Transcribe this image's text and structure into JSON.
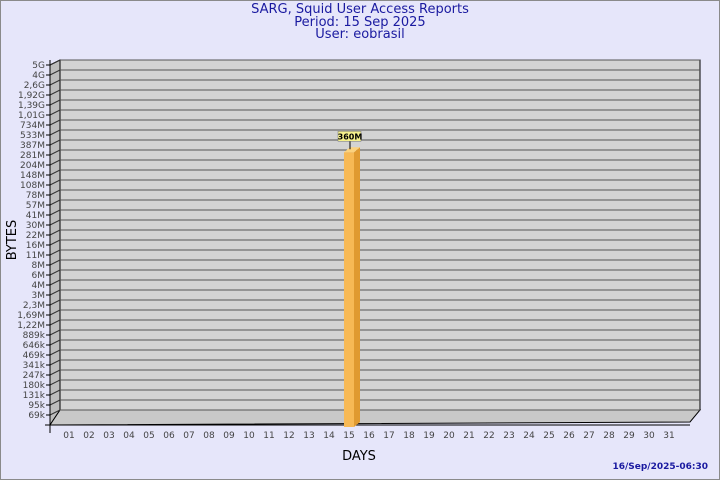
{
  "chart_data": {
    "type": "bar",
    "title": "SARG, Squid User Access Reports",
    "subtitle": [
      "Period: 15 Sep 2025",
      "User: eobrasil"
    ],
    "xlabel": "DAYS",
    "ylabel": "BYTES",
    "y_scale": "log",
    "y_tick_labels": [
      "5G",
      "4G",
      "2,6G",
      "1,92G",
      "1,39G",
      "1,01G",
      "734M",
      "533M",
      "387M",
      "281M",
      "204M",
      "148M",
      "108M",
      "78M",
      "57M",
      "41M",
      "30M",
      "22M",
      "16M",
      "11M",
      "8M",
      "6M",
      "4M",
      "3M",
      "2,3M",
      "1,69M",
      "1,22M",
      "889k",
      "646k",
      "469k",
      "341k",
      "247k",
      "180k",
      "131k",
      "95k",
      "69k"
    ],
    "categories": [
      "01",
      "02",
      "03",
      "04",
      "05",
      "06",
      "07",
      "08",
      "09",
      "10",
      "11",
      "12",
      "13",
      "14",
      "15",
      "16",
      "17",
      "18",
      "19",
      "20",
      "21",
      "22",
      "23",
      "24",
      "25",
      "26",
      "27",
      "28",
      "29",
      "30",
      "31"
    ],
    "bars": [
      {
        "category": "15",
        "value": 360000000,
        "label": "360M"
      }
    ],
    "grid": true,
    "colors": {
      "background": "#e6e6fa",
      "plot": "#d3d3d3",
      "bar": "#f7b955",
      "bar_side": "#e09a30",
      "title": "#1a1aa0"
    }
  },
  "footer": {
    "timestamp": "16/Sep/2025-06:30"
  }
}
